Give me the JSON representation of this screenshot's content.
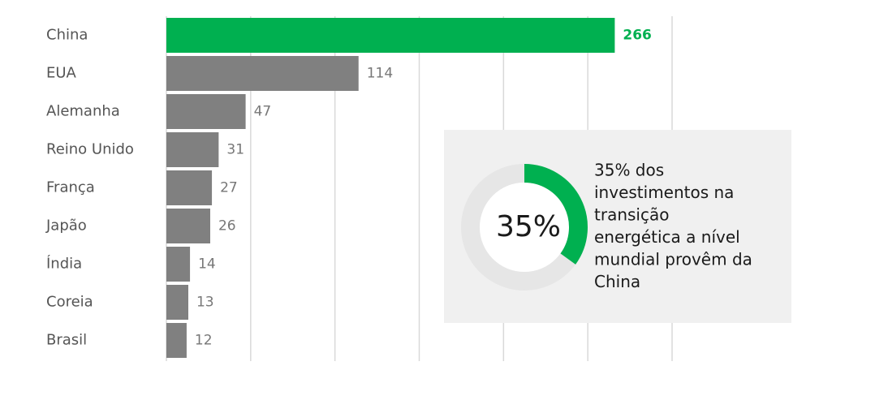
{
  "chart_data": [
    {
      "type": "hbar",
      "categories": [
        "China",
        "EUA",
        "Alemanha",
        "Reino Unido",
        "França",
        "Japão",
        "Índia",
        "Coreia",
        "Brasil"
      ],
      "values": [
        266,
        114,
        47,
        31,
        27,
        26,
        14,
        13,
        12
      ],
      "color": "#808080",
      "highlight": "China",
      "highlight_color": "#00b050",
      "xlim": [
        0,
        300
      ],
      "xticks": [
        0,
        50,
        100,
        150,
        200,
        250,
        300
      ],
      "grid": true
    },
    {
      "type": "donut",
      "values": [
        35
      ],
      "value_labels": [
        "35%"
      ],
      "color": "#00b050",
      "track_color": "#e6e6e6",
      "text_lines": [
        "35% dos",
        "investimentos na",
        "transição",
        "energética a nível",
        "mundial provêm da",
        "China"
      ]
    }
  ]
}
